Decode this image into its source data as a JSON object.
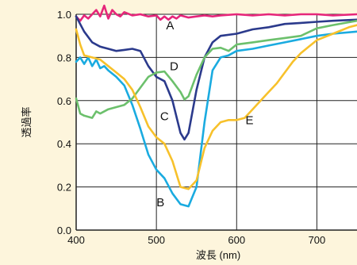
{
  "chart_data": {
    "type": "line",
    "xlabel": "波長 (nm)",
    "ylabel": "透過率",
    "xlim": [
      400,
      750
    ],
    "ylim": [
      0,
      1.0
    ],
    "grid": true,
    "legend": "none",
    "x_ticks": [
      {
        "value": 400,
        "label": "400"
      },
      {
        "value": 500,
        "label": "500"
      },
      {
        "value": 600,
        "label": "600"
      },
      {
        "value": 700,
        "label": "700"
      }
    ],
    "y_ticks": [
      {
        "value": 0.0,
        "label": "0.0"
      },
      {
        "value": 0.2,
        "label": "0.2"
      },
      {
        "value": 0.4,
        "label": "0.4"
      },
      {
        "value": 0.6,
        "label": "0.6"
      },
      {
        "value": 0.8,
        "label": "0.8"
      },
      {
        "value": 1.0,
        "label": "1.0"
      }
    ],
    "series": [
      {
        "name": "A",
        "color": "#e6267a",
        "label_at": [
          517,
          0.93
        ],
        "points": [
          [
            400,
            0.99
          ],
          [
            405,
            0.97
          ],
          [
            410,
            0.995
          ],
          [
            415,
            0.98
          ],
          [
            420,
            1.0
          ],
          [
            425,
            1.02
          ],
          [
            430,
            0.99
          ],
          [
            435,
            1.04
          ],
          [
            440,
            0.98
          ],
          [
            445,
            1.02
          ],
          [
            450,
            1.0
          ],
          [
            455,
            0.99
          ],
          [
            460,
            1.01
          ],
          [
            470,
            0.995
          ],
          [
            480,
            1.0
          ],
          [
            490,
            0.99
          ],
          [
            500,
            0.995
          ],
          [
            505,
            0.975
          ],
          [
            510,
            0.99
          ],
          [
            515,
            0.975
          ],
          [
            520,
            0.99
          ],
          [
            525,
            0.98
          ],
          [
            530,
            0.995
          ],
          [
            540,
            0.985
          ],
          [
            550,
            0.99
          ],
          [
            560,
            0.995
          ],
          [
            570,
            0.99
          ],
          [
            580,
            0.995
          ],
          [
            600,
            1.0
          ],
          [
            620,
            0.995
          ],
          [
            640,
            1.0
          ],
          [
            660,
            0.995
          ],
          [
            680,
            1.0
          ],
          [
            700,
            1.0
          ],
          [
            720,
            0.995
          ],
          [
            750,
            1.0
          ]
        ]
      },
      {
        "name": "B",
        "color": "#1aabe0",
        "label_at": [
          505,
          0.11
        ],
        "points": [
          [
            400,
            0.78
          ],
          [
            405,
            0.8
          ],
          [
            410,
            0.77
          ],
          [
            415,
            0.8
          ],
          [
            420,
            0.76
          ],
          [
            425,
            0.79
          ],
          [
            430,
            0.75
          ],
          [
            435,
            0.76
          ],
          [
            440,
            0.74
          ],
          [
            450,
            0.71
          ],
          [
            460,
            0.67
          ],
          [
            470,
            0.58
          ],
          [
            480,
            0.47
          ],
          [
            490,
            0.35
          ],
          [
            500,
            0.28
          ],
          [
            510,
            0.24
          ],
          [
            520,
            0.17
          ],
          [
            530,
            0.12
          ],
          [
            540,
            0.11
          ],
          [
            550,
            0.2
          ],
          [
            560,
            0.5
          ],
          [
            570,
            0.74
          ],
          [
            580,
            0.8
          ],
          [
            590,
            0.81
          ],
          [
            600,
            0.83
          ],
          [
            620,
            0.84
          ],
          [
            640,
            0.855
          ],
          [
            660,
            0.87
          ],
          [
            680,
            0.885
          ],
          [
            700,
            0.9
          ],
          [
            720,
            0.91
          ],
          [
            750,
            0.92
          ]
        ]
      },
      {
        "name": "C",
        "color": "#2b3a8c",
        "label_at": [
          510,
          0.51
        ],
        "points": [
          [
            400,
            0.99
          ],
          [
            410,
            0.92
          ],
          [
            420,
            0.87
          ],
          [
            430,
            0.85
          ],
          [
            440,
            0.84
          ],
          [
            450,
            0.83
          ],
          [
            460,
            0.835
          ],
          [
            470,
            0.84
          ],
          [
            480,
            0.83
          ],
          [
            490,
            0.76
          ],
          [
            500,
            0.71
          ],
          [
            510,
            0.69
          ],
          [
            520,
            0.6
          ],
          [
            530,
            0.45
          ],
          [
            535,
            0.42
          ],
          [
            540,
            0.45
          ],
          [
            550,
            0.65
          ],
          [
            560,
            0.8
          ],
          [
            570,
            0.87
          ],
          [
            580,
            0.9
          ],
          [
            600,
            0.91
          ],
          [
            620,
            0.93
          ],
          [
            640,
            0.94
          ],
          [
            660,
            0.955
          ],
          [
            680,
            0.96
          ],
          [
            700,
            0.965
          ],
          [
            720,
            0.97
          ],
          [
            750,
            0.975
          ]
        ]
      },
      {
        "name": "D",
        "color": "#6cc06c",
        "label_at": [
          522,
          0.74
        ],
        "points": [
          [
            400,
            0.61
          ],
          [
            405,
            0.54
          ],
          [
            410,
            0.53
          ],
          [
            420,
            0.52
          ],
          [
            425,
            0.55
          ],
          [
            430,
            0.54
          ],
          [
            440,
            0.56
          ],
          [
            450,
            0.57
          ],
          [
            460,
            0.58
          ],
          [
            470,
            0.61
          ],
          [
            480,
            0.66
          ],
          [
            490,
            0.71
          ],
          [
            500,
            0.73
          ],
          [
            510,
            0.735
          ],
          [
            520,
            0.69
          ],
          [
            530,
            0.64
          ],
          [
            535,
            0.605
          ],
          [
            540,
            0.62
          ],
          [
            550,
            0.72
          ],
          [
            560,
            0.8
          ],
          [
            570,
            0.84
          ],
          [
            580,
            0.845
          ],
          [
            590,
            0.83
          ],
          [
            600,
            0.86
          ],
          [
            620,
            0.87
          ],
          [
            640,
            0.88
          ],
          [
            660,
            0.89
          ],
          [
            680,
            0.9
          ],
          [
            700,
            0.935
          ],
          [
            720,
            0.95
          ],
          [
            750,
            0.97
          ]
        ]
      },
      {
        "name": "E",
        "color": "#f7c12b",
        "label_at": [
          616,
          0.49
        ],
        "points": [
          [
            400,
            0.93
          ],
          [
            405,
            0.86
          ],
          [
            410,
            0.81
          ],
          [
            420,
            0.8
          ],
          [
            430,
            0.79
          ],
          [
            440,
            0.76
          ],
          [
            450,
            0.73
          ],
          [
            460,
            0.7
          ],
          [
            470,
            0.65
          ],
          [
            480,
            0.57
          ],
          [
            490,
            0.48
          ],
          [
            500,
            0.43
          ],
          [
            510,
            0.4
          ],
          [
            520,
            0.32
          ],
          [
            530,
            0.2
          ],
          [
            540,
            0.19
          ],
          [
            550,
            0.23
          ],
          [
            560,
            0.38
          ],
          [
            570,
            0.46
          ],
          [
            580,
            0.5
          ],
          [
            590,
            0.51
          ],
          [
            600,
            0.51
          ],
          [
            610,
            0.52
          ],
          [
            620,
            0.56
          ],
          [
            630,
            0.6
          ],
          [
            640,
            0.64
          ],
          [
            650,
            0.68
          ],
          [
            660,
            0.73
          ],
          [
            670,
            0.78
          ],
          [
            680,
            0.82
          ],
          [
            690,
            0.85
          ],
          [
            700,
            0.88
          ],
          [
            720,
            0.91
          ],
          [
            740,
            0.94
          ],
          [
            750,
            0.95
          ]
        ]
      }
    ]
  }
}
